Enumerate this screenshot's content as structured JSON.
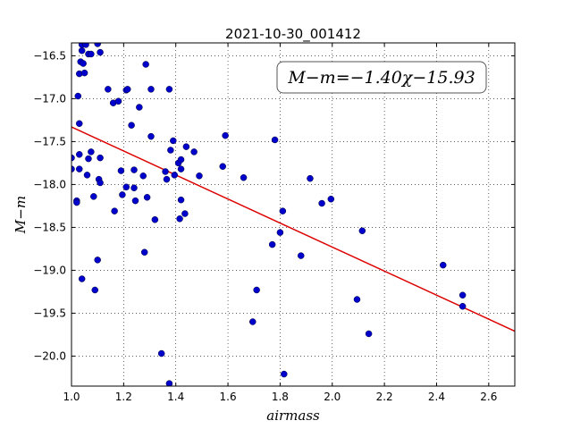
{
  "chart_data": {
    "type": "scatter",
    "title": "2021-10-30_001412",
    "xlabel": "airmass",
    "ylabel": "M−m",
    "xlim": [
      1.0,
      2.7
    ],
    "ylim": [
      -20.35,
      -16.35
    ],
    "xticks": [
      1.0,
      1.2,
      1.4,
      1.6,
      1.8,
      2.0,
      2.2,
      2.4,
      2.6
    ],
    "xtick_labels": [
      "1.0",
      "1.2",
      "1.4",
      "1.6",
      "1.8",
      "2.0",
      "2.2",
      "2.4",
      "2.6"
    ],
    "yticks": [
      -16.5,
      -17.0,
      -17.5,
      -18.0,
      -18.5,
      -19.0,
      -19.5,
      -20.0
    ],
    "ytick_labels": [
      "−16.5",
      "−17.0",
      "−17.5",
      "−18.0",
      "−18.5",
      "−19.0",
      "−19.5",
      "−20.0"
    ],
    "grid": true,
    "annotation": "M−m=−1.40χ−15.93",
    "point_color": "#0000cc",
    "fit_color": "#dd0000",
    "fit": {
      "slope": -1.4,
      "intercept": -15.93,
      "x_range": [
        1.0,
        2.7
      ]
    },
    "points": [
      [
        1.0,
        -17.69
      ],
      [
        1.0,
        -17.82
      ],
      [
        1.02,
        -18.19
      ],
      [
        1.02,
        -18.21
      ],
      [
        1.025,
        -16.97
      ],
      [
        1.03,
        -16.71
      ],
      [
        1.03,
        -17.29
      ],
      [
        1.03,
        -17.65
      ],
      [
        1.03,
        -17.82
      ],
      [
        1.035,
        -16.57
      ],
      [
        1.04,
        -16.44
      ],
      [
        1.04,
        -16.37
      ],
      [
        1.04,
        -19.1
      ],
      [
        1.045,
        -16.59
      ],
      [
        1.05,
        -16.7
      ],
      [
        1.055,
        -16.37
      ],
      [
        1.06,
        -17.89
      ],
      [
        1.065,
        -16.48
      ],
      [
        1.065,
        -17.7
      ],
      [
        1.075,
        -16.48
      ],
      [
        1.075,
        -17.62
      ],
      [
        1.085,
        -18.14
      ],
      [
        1.09,
        -19.23
      ],
      [
        1.1,
        -16.36
      ],
      [
        1.1,
        -18.88
      ],
      [
        1.105,
        -17.94
      ],
      [
        1.11,
        -16.46
      ],
      [
        1.11,
        -17.69
      ],
      [
        1.11,
        -17.98
      ],
      [
        1.14,
        -16.89
      ],
      [
        1.16,
        -17.05
      ],
      [
        1.165,
        -18.31
      ],
      [
        1.18,
        -17.03
      ],
      [
        1.19,
        -17.84
      ],
      [
        1.195,
        -18.12
      ],
      [
        1.21,
        -16.9
      ],
      [
        1.21,
        -18.03
      ],
      [
        1.215,
        -16.89
      ],
      [
        1.23,
        -17.31
      ],
      [
        1.24,
        -17.83
      ],
      [
        1.24,
        -18.04
      ],
      [
        1.245,
        -18.19
      ],
      [
        1.26,
        -17.1
      ],
      [
        1.275,
        -17.9
      ],
      [
        1.28,
        -18.79
      ],
      [
        1.285,
        -16.6
      ],
      [
        1.29,
        -18.15
      ],
      [
        1.305,
        -16.89
      ],
      [
        1.305,
        -17.44
      ],
      [
        1.32,
        -18.41
      ],
      [
        1.345,
        -19.97
      ],
      [
        1.36,
        -17.85
      ],
      [
        1.365,
        -17.94
      ],
      [
        1.375,
        -16.89
      ],
      [
        1.375,
        -20.32
      ],
      [
        1.38,
        -17.6
      ],
      [
        1.39,
        -17.49
      ],
      [
        1.395,
        -17.89
      ],
      [
        1.41,
        -17.75
      ],
      [
        1.415,
        -18.4
      ],
      [
        1.42,
        -17.71
      ],
      [
        1.42,
        -17.82
      ],
      [
        1.42,
        -18.18
      ],
      [
        1.435,
        -18.34
      ],
      [
        1.44,
        -17.56
      ],
      [
        1.47,
        -17.62
      ],
      [
        1.49,
        -17.9
      ],
      [
        1.58,
        -17.79
      ],
      [
        1.59,
        -17.43
      ],
      [
        1.66,
        -17.92
      ],
      [
        1.695,
        -19.6
      ],
      [
        1.71,
        -19.23
      ],
      [
        1.77,
        -18.7
      ],
      [
        1.78,
        -17.48
      ],
      [
        1.8,
        -18.56
      ],
      [
        1.81,
        -18.31
      ],
      [
        1.815,
        -20.21
      ],
      [
        1.88,
        -18.83
      ],
      [
        1.915,
        -17.93
      ],
      [
        1.96,
        -18.22
      ],
      [
        1.995,
        -18.17
      ],
      [
        2.095,
        -19.34
      ],
      [
        2.115,
        -18.54
      ],
      [
        2.14,
        -19.74
      ],
      [
        2.425,
        -18.94
      ],
      [
        2.5,
        -19.29
      ],
      [
        2.5,
        -19.42
      ]
    ]
  }
}
